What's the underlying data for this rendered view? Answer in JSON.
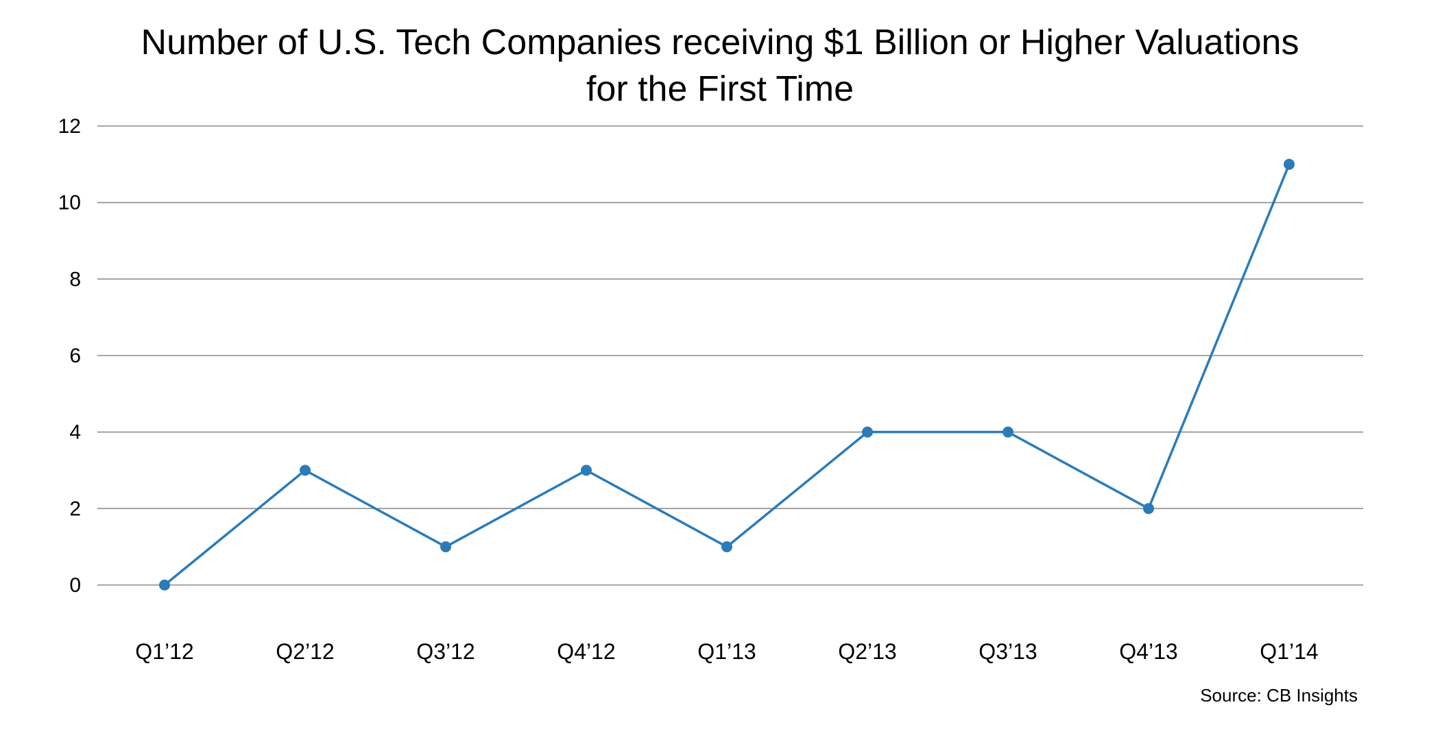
{
  "chart_data": {
    "type": "line",
    "title_lines": [
      "Number of U.S. Tech Companies receiving $1 Billion or Higher Valuations",
      "for the First Time"
    ],
    "xlabel": "",
    "ylabel": "",
    "categories": [
      "Q1’12",
      "Q2’12",
      "Q3’12",
      "Q4’12",
      "Q1’13",
      "Q2’13",
      "Q3’13",
      "Q4’13",
      "Q1’14"
    ],
    "series": [
      {
        "values": [
          0,
          3,
          1,
          3,
          1,
          4,
          4,
          2,
          11
        ]
      }
    ],
    "ylim": [
      0,
      12
    ],
    "yticks": [
      0,
      2,
      4,
      6,
      8,
      10,
      12
    ],
    "grid": true,
    "legend": "none",
    "colors": {
      "line": "#2b7bb9",
      "grid": "#8c8c8c"
    },
    "source": "Source: CB Insights"
  }
}
